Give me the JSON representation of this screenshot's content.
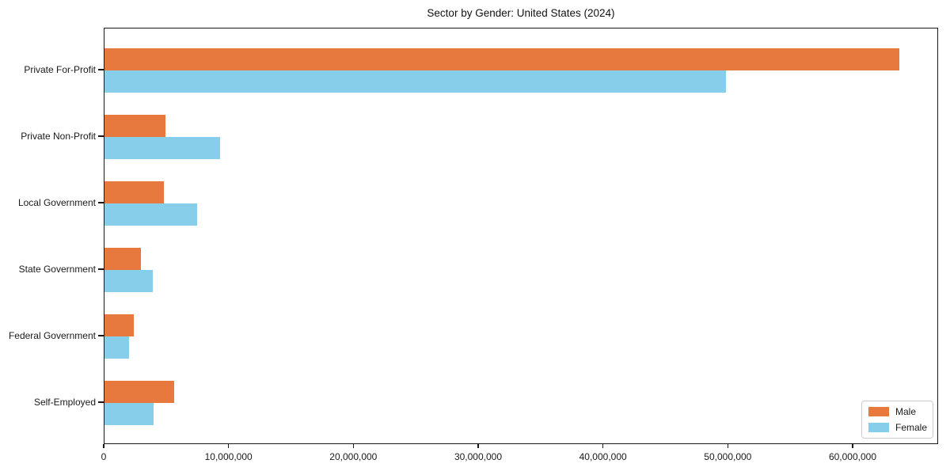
{
  "chart_data": {
    "type": "bar",
    "orientation": "horizontal",
    "title": "Sector by Gender: United States (2024)",
    "categories": [
      "Private For-Profit",
      "Private Non-Profit",
      "Local Government",
      "State Government",
      "Federal Government",
      "Self-Employed"
    ],
    "series": [
      {
        "name": "Male",
        "color": "#E8793E",
        "values": [
          63700000,
          4900000,
          4750000,
          2900000,
          2350000,
          5580000
        ]
      },
      {
        "name": "Female",
        "color": "#87CEEA",
        "values": [
          49800000,
          9250000,
          7400000,
          3870000,
          1970000,
          3930000
        ]
      }
    ],
    "xlabel": "",
    "ylabel": "",
    "xlim": [
      0,
      66850000
    ],
    "x_ticks": [
      0,
      10000000,
      20000000,
      30000000,
      40000000,
      50000000,
      60000000
    ],
    "x_tick_labels": [
      "0",
      "10,000,000",
      "20,000,000",
      "30,000,000",
      "40,000,000",
      "50,000,000",
      "60,000,000"
    ],
    "grid": false,
    "legend_position": "lower right",
    "axis_color": "#1a1a1a"
  }
}
